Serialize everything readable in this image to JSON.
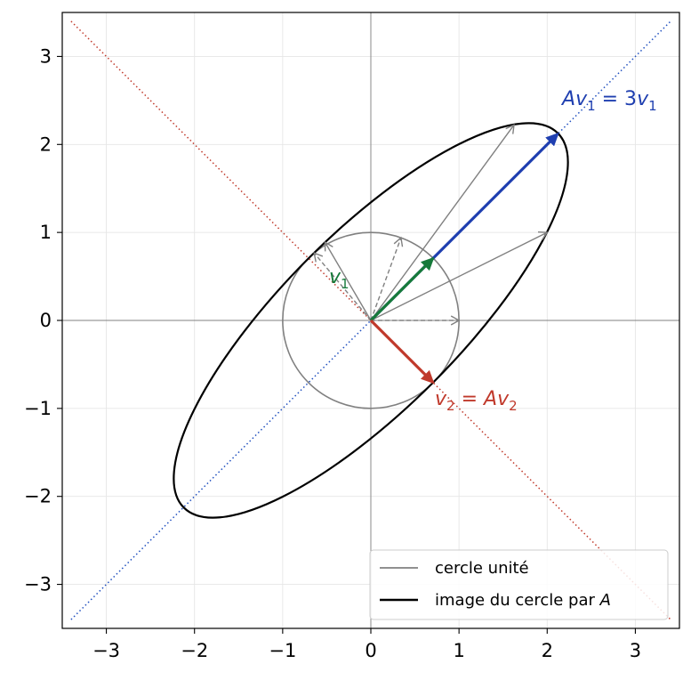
{
  "chart_data": {
    "type": "line",
    "xlim": [
      -3.5,
      3.5
    ],
    "ylim": [
      -3.5,
      3.5
    ],
    "xticks": [
      "−3",
      "−2",
      "−1",
      "0",
      "1",
      "2",
      "3"
    ],
    "yticks": [
      "−3",
      "−2",
      "−1",
      "0",
      "1",
      "2",
      "3"
    ],
    "xtick_values": [
      -3,
      -2,
      -1,
      0,
      1,
      2,
      3
    ],
    "ytick_values": [
      -3,
      -2,
      -1,
      0,
      1,
      2,
      3
    ],
    "grid": true,
    "legend_position": "bottom-right",
    "matrix_A": [
      [
        2,
        1
      ],
      [
        1,
        2
      ]
    ],
    "eigen_lines": {
      "v1_direction": [
        1,
        1
      ],
      "v2_direction": [
        1,
        -1
      ]
    },
    "sample_vectors": [
      {
        "v": [
          1,
          0
        ],
        "Av": [
          2,
          1
        ]
      },
      {
        "v": [
          0.342,
          0.94
        ],
        "Av": [
          1.624,
          2.222
        ]
      },
      {
        "v": [
          -0.643,
          0.766
        ],
        "Av": [
          -0.52,
          0.889
        ]
      },
      {
        "v": [
          0.707,
          0.707
        ],
        "Av": [
          2.121,
          2.121
        ]
      },
      {
        "v": [
          0.707,
          -0.707
        ],
        "Av": [
          0.707,
          -0.707
        ]
      }
    ],
    "eigenvectors": {
      "v1": [
        0.707,
        0.707
      ],
      "Av1": [
        2.121,
        2.121
      ],
      "v2": [
        0.707,
        -0.707
      ]
    },
    "annotations": {
      "v1": "v",
      "v1_sub": "1",
      "Av1_A": "A",
      "Av1_v": "v",
      "Av1_sub": "1",
      "Av1_eq": " = 3",
      "Av1_v2": "v",
      "Av1_sub2": "1",
      "v2_v": "v",
      "v2_sub": "2",
      "v2_eq": " = ",
      "v2_A": "A",
      "v2_v2": "v",
      "v2_sub2": "2"
    },
    "series": [
      {
        "name": "cercle unité",
        "color": "#808080"
      },
      {
        "name": "image du cercle par A",
        "color": "#000000"
      }
    ],
    "legend": {
      "item1": "cercle unité",
      "item2_prefix": "image du cercle par ",
      "item2_math": "A"
    },
    "colors": {
      "v1": "#167a3a",
      "Av1": "#1f3fb0",
      "v2": "#c0392b",
      "gray": "#808080",
      "line_v1": "#1f4fbf",
      "line_v2": "#c0392b"
    }
  }
}
